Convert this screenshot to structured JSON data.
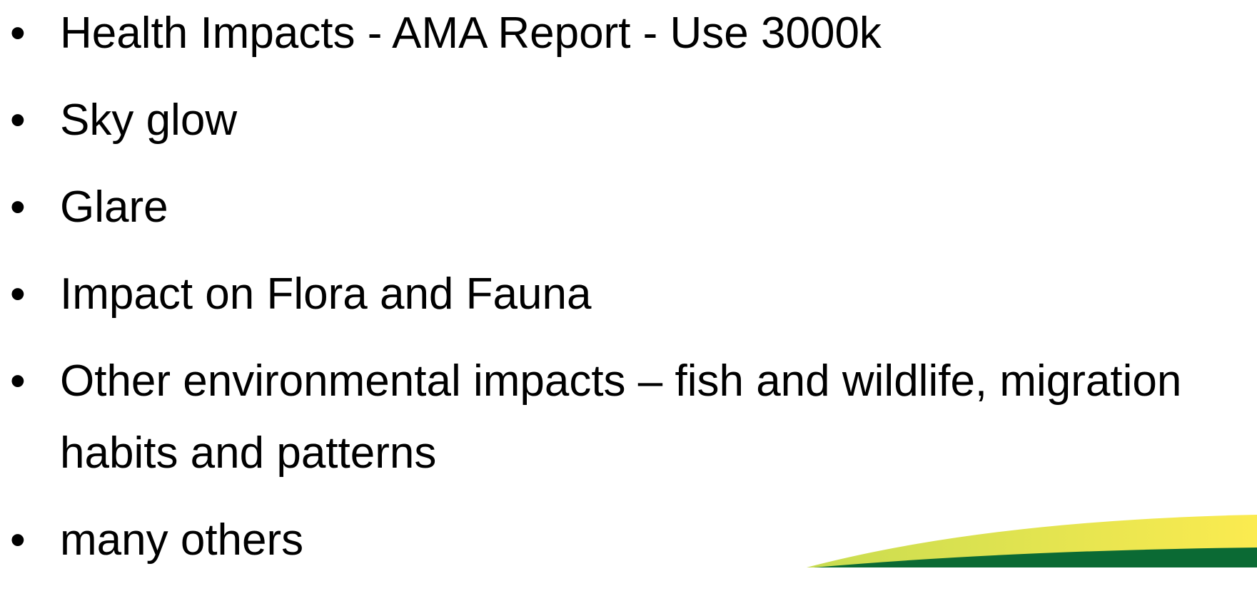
{
  "bullets": [
    "Health Impacts - AMA Report - Use 3000k",
    "Sky glow",
    "Glare",
    "Impact on Flora and Fauna",
    "Other environmental impacts – fish and wildlife, migration habits and patterns",
    "many others"
  ]
}
